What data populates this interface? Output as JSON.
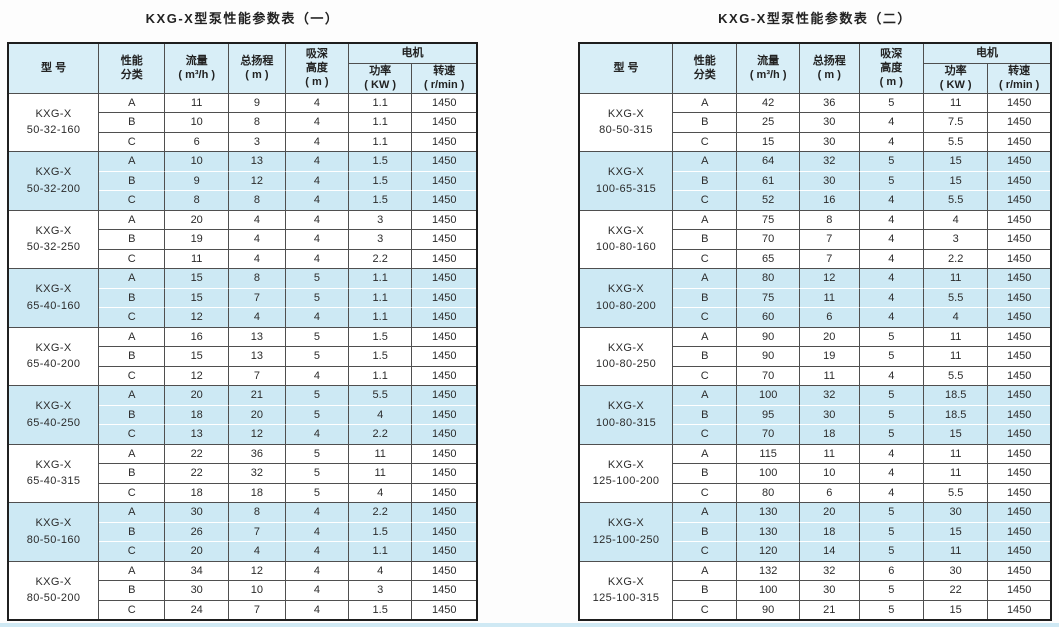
{
  "colors": {
    "band_blue": "#cde9f4",
    "header_blue": "#d8eef7",
    "border_dark": "#4f4f4f",
    "outer_border": "#1e1e1e",
    "bottom_strip": "#cfe9f4"
  },
  "tables": [
    {
      "title": "KXG-X型泵性能参数表（一）",
      "headers": {
        "model": "型  号",
        "class": "性能\n分类",
        "flow": "流量\n( m³/h )",
        "head": "总扬程\n( m )",
        "suction": "吸深\n高度\n( m )",
        "motor": "电机",
        "power": "功率\n( KW )",
        "speed": "转速\n( r/min )"
      },
      "groups": [
        {
          "model": "KXG-X\n50-32-160",
          "rows": [
            [
              "A",
              "11",
              "9",
              "4",
              "1.1",
              "1450"
            ],
            [
              "B",
              "10",
              "8",
              "4",
              "1.1",
              "1450"
            ],
            [
              "C",
              "6",
              "3",
              "4",
              "1.1",
              "1450"
            ]
          ]
        },
        {
          "model": "KXG-X\n50-32-200",
          "rows": [
            [
              "A",
              "10",
              "13",
              "4",
              "1.5",
              "1450"
            ],
            [
              "B",
              "9",
              "12",
              "4",
              "1.5",
              "1450"
            ],
            [
              "C",
              "8",
              "8",
              "4",
              "1.5",
              "1450"
            ]
          ]
        },
        {
          "model": "KXG-X\n50-32-250",
          "rows": [
            [
              "A",
              "20",
              "4",
              "4",
              "3",
              "1450"
            ],
            [
              "B",
              "19",
              "4",
              "4",
              "3",
              "1450"
            ],
            [
              "C",
              "11",
              "4",
              "4",
              "2.2",
              "1450"
            ]
          ]
        },
        {
          "model": "KXG-X\n65-40-160",
          "rows": [
            [
              "A",
              "15",
              "8",
              "5",
              "1.1",
              "1450"
            ],
            [
              "B",
              "15",
              "7",
              "5",
              "1.1",
              "1450"
            ],
            [
              "C",
              "12",
              "4",
              "4",
              "1.1",
              "1450"
            ]
          ]
        },
        {
          "model": "KXG-X\n65-40-200",
          "rows": [
            [
              "A",
              "16",
              "13",
              "5",
              "1.5",
              "1450"
            ],
            [
              "B",
              "15",
              "13",
              "5",
              "1.5",
              "1450"
            ],
            [
              "C",
              "12",
              "7",
              "4",
              "1.1",
              "1450"
            ]
          ]
        },
        {
          "model": "KXG-X\n65-40-250",
          "rows": [
            [
              "A",
              "20",
              "21",
              "5",
              "5.5",
              "1450"
            ],
            [
              "B",
              "18",
              "20",
              "5",
              "4",
              "1450"
            ],
            [
              "C",
              "13",
              "12",
              "4",
              "2.2",
              "1450"
            ]
          ]
        },
        {
          "model": "KXG-X\n65-40-315",
          "rows": [
            [
              "A",
              "22",
              "36",
              "5",
              "11",
              "1450"
            ],
            [
              "B",
              "22",
              "32",
              "5",
              "11",
              "1450"
            ],
            [
              "C",
              "18",
              "18",
              "5",
              "4",
              "1450"
            ]
          ]
        },
        {
          "model": "KXG-X\n80-50-160",
          "rows": [
            [
              "A",
              "30",
              "8",
              "4",
              "2.2",
              "1450"
            ],
            [
              "B",
              "26",
              "7",
              "4",
              "1.5",
              "1450"
            ],
            [
              "C",
              "20",
              "4",
              "4",
              "1.1",
              "1450"
            ]
          ]
        },
        {
          "model": "KXG-X\n80-50-200",
          "rows": [
            [
              "A",
              "34",
              "12",
              "4",
              "4",
              "1450"
            ],
            [
              "B",
              "30",
              "10",
              "4",
              "3",
              "1450"
            ],
            [
              "C",
              "24",
              "7",
              "4",
              "1.5",
              "1450"
            ]
          ]
        }
      ]
    },
    {
      "title": "KXG-X型泵性能参数表（二）",
      "headers": {
        "model": "型  号",
        "class": "性能\n分类",
        "flow": "流量\n( m³/h )",
        "head": "总扬程\n( m )",
        "suction": "吸深\n高度\n( m )",
        "motor": "电机",
        "power": "功率\n( KW )",
        "speed": "转速\n( r/min )"
      },
      "groups": [
        {
          "model": "KXG-X\n80-50-315",
          "rows": [
            [
              "A",
              "42",
              "36",
              "5",
              "11",
              "1450"
            ],
            [
              "B",
              "25",
              "30",
              "4",
              "7.5",
              "1450"
            ],
            [
              "C",
              "15",
              "30",
              "4",
              "5.5",
              "1450"
            ]
          ]
        },
        {
          "model": "KXG-X\n100-65-315",
          "rows": [
            [
              "A",
              "64",
              "32",
              "5",
              "15",
              "1450"
            ],
            [
              "B",
              "61",
              "30",
              "5",
              "15",
              "1450"
            ],
            [
              "C",
              "52",
              "16",
              "4",
              "5.5",
              "1450"
            ]
          ]
        },
        {
          "model": "KXG-X\n100-80-160",
          "rows": [
            [
              "A",
              "75",
              "8",
              "4",
              "4",
              "1450"
            ],
            [
              "B",
              "70",
              "7",
              "4",
              "3",
              "1450"
            ],
            [
              "C",
              "65",
              "7",
              "4",
              "2.2",
              "1450"
            ]
          ]
        },
        {
          "model": "KXG-X\n100-80-200",
          "rows": [
            [
              "A",
              "80",
              "12",
              "4",
              "11",
              "1450"
            ],
            [
              "B",
              "75",
              "11",
              "4",
              "5.5",
              "1450"
            ],
            [
              "C",
              "60",
              "6",
              "4",
              "4",
              "1450"
            ]
          ]
        },
        {
          "model": "KXG-X\n100-80-250",
          "rows": [
            [
              "A",
              "90",
              "20",
              "5",
              "11",
              "1450"
            ],
            [
              "B",
              "90",
              "19",
              "5",
              "11",
              "1450"
            ],
            [
              "C",
              "70",
              "11",
              "4",
              "5.5",
              "1450"
            ]
          ]
        },
        {
          "model": "KXG-X\n100-80-315",
          "rows": [
            [
              "A",
              "100",
              "32",
              "5",
              "18.5",
              "1450"
            ],
            [
              "B",
              "95",
              "30",
              "5",
              "18.5",
              "1450"
            ],
            [
              "C",
              "70",
              "18",
              "5",
              "15",
              "1450"
            ]
          ]
        },
        {
          "model": "KXG-X\n125-100-200",
          "rows": [
            [
              "A",
              "115",
              "11",
              "4",
              "11",
              "1450"
            ],
            [
              "B",
              "100",
              "10",
              "4",
              "11",
              "1450"
            ],
            [
              "C",
              "80",
              "6",
              "4",
              "5.5",
              "1450"
            ]
          ]
        },
        {
          "model": "KXG-X\n125-100-250",
          "rows": [
            [
              "A",
              "130",
              "20",
              "5",
              "30",
              "1450"
            ],
            [
              "B",
              "130",
              "18",
              "5",
              "15",
              "1450"
            ],
            [
              "C",
              "120",
              "14",
              "5",
              "11",
              "1450"
            ]
          ]
        },
        {
          "model": "KXG-X\n125-100-315",
          "rows": [
            [
              "A",
              "132",
              "32",
              "6",
              "30",
              "1450"
            ],
            [
              "B",
              "100",
              "30",
              "5",
              "22",
              "1450"
            ],
            [
              "C",
              "90",
              "21",
              "5",
              "15",
              "1450"
            ]
          ]
        }
      ]
    }
  ]
}
